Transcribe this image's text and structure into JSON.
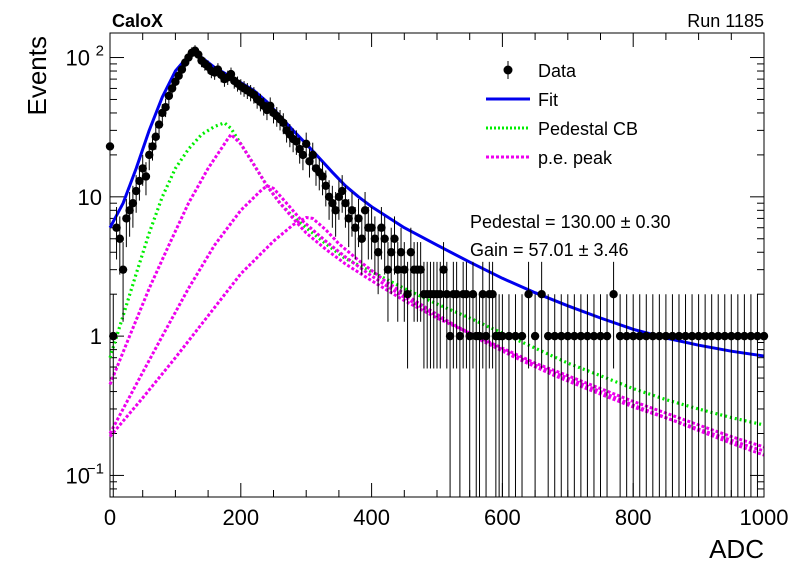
{
  "header": {
    "experiment": "CaloX",
    "run": "Run 1185"
  },
  "colors": {
    "data": "#000000",
    "fit": "#0000ee",
    "pedestal": "#00ee00",
    "pe": "#ee00ee"
  },
  "stats": {
    "pedestal": "Pedestal = 130.00 ± 0.30",
    "gain": "Gain = 57.01 ± 3.46"
  },
  "chart_data": {
    "type": "scatter",
    "xlabel": "ADC",
    "ylabel": "Events",
    "xlim": [
      0,
      1000
    ],
    "ylim": [
      0.07,
      150
    ],
    "yscale": "log",
    "x_ticks": [
      0,
      200,
      400,
      600,
      800,
      1000
    ],
    "y_ticks": [
      {
        "v": 0.1,
        "label": "10",
        "sup": "−1"
      },
      {
        "v": 1,
        "label": "1",
        "sup": ""
      },
      {
        "v": 10,
        "label": "10",
        "sup": ""
      },
      {
        "v": 100,
        "label": "10",
        "sup": "2"
      }
    ],
    "legend": {
      "position": "top-right",
      "entries": [
        {
          "key": "data",
          "label": "Data",
          "style": "marker"
        },
        {
          "key": "fit",
          "label": "Fit",
          "style": "solid"
        },
        {
          "key": "pedestal",
          "label": "Pedestal CB",
          "style": "dotted"
        },
        {
          "key": "pe",
          "label": "p.e. peak",
          "style": "dotted"
        }
      ]
    },
    "series": [
      {
        "name": "Data",
        "style": "points",
        "points": [
          [
            0,
            23
          ],
          [
            5,
            1
          ],
          [
            10,
            6
          ],
          [
            15,
            5
          ],
          [
            20,
            3
          ],
          [
            25,
            7
          ],
          [
            30,
            8
          ],
          [
            35,
            9
          ],
          [
            40,
            11
          ],
          [
            45,
            13
          ],
          [
            50,
            16
          ],
          [
            55,
            14
          ],
          [
            60,
            20
          ],
          [
            65,
            23
          ],
          [
            70,
            27
          ],
          [
            75,
            33
          ],
          [
            80,
            40
          ],
          [
            85,
            44
          ],
          [
            90,
            53
          ],
          [
            95,
            60
          ],
          [
            100,
            67
          ],
          [
            105,
            74
          ],
          [
            110,
            82
          ],
          [
            115,
            92
          ],
          [
            120,
            100
          ],
          [
            125,
            108
          ],
          [
            130,
            112
          ],
          [
            135,
            105
          ],
          [
            140,
            95
          ],
          [
            145,
            90
          ],
          [
            150,
            86
          ],
          [
            155,
            80
          ],
          [
            160,
            78
          ],
          [
            165,
            82
          ],
          [
            170,
            75
          ],
          [
            175,
            70
          ],
          [
            180,
            72
          ],
          [
            185,
            76
          ],
          [
            190,
            68
          ],
          [
            195,
            65
          ],
          [
            200,
            62
          ],
          [
            205,
            60
          ],
          [
            210,
            58
          ],
          [
            215,
            56
          ],
          [
            220,
            54
          ],
          [
            225,
            50
          ],
          [
            230,
            48
          ],
          [
            235,
            45
          ],
          [
            240,
            42
          ],
          [
            245,
            45
          ],
          [
            250,
            40
          ],
          [
            255,
            38
          ],
          [
            260,
            36
          ],
          [
            265,
            34
          ],
          [
            270,
            30
          ],
          [
            275,
            28
          ],
          [
            280,
            26
          ],
          [
            285,
            25
          ],
          [
            290,
            22
          ],
          [
            295,
            20
          ],
          [
            300,
            24
          ],
          [
            305,
            18
          ],
          [
            310,
            20
          ],
          [
            315,
            16
          ],
          [
            320,
            15
          ],
          [
            325,
            14
          ],
          [
            330,
            12
          ],
          [
            335,
            10
          ],
          [
            340,
            9
          ],
          [
            345,
            8
          ],
          [
            350,
            10
          ],
          [
            355,
            11
          ],
          [
            360,
            9
          ],
          [
            365,
            7
          ],
          [
            370,
            8
          ],
          [
            375,
            6
          ],
          [
            380,
            7
          ],
          [
            385,
            5
          ],
          [
            390,
            8
          ],
          [
            395,
            6
          ],
          [
            400,
            6
          ],
          [
            405,
            5
          ],
          [
            410,
            4
          ],
          [
            415,
            6
          ],
          [
            420,
            5
          ],
          [
            425,
            3
          ],
          [
            430,
            4
          ],
          [
            435,
            5
          ],
          [
            440,
            3
          ],
          [
            445,
            4
          ],
          [
            450,
            3
          ],
          [
            455,
            2
          ],
          [
            460,
            4
          ],
          [
            465,
            3
          ],
          [
            470,
            3
          ],
          [
            475,
            3
          ],
          [
            480,
            2
          ],
          [
            485,
            2
          ],
          [
            490,
            2
          ],
          [
            495,
            2
          ],
          [
            500,
            2
          ],
          [
            505,
            2
          ],
          [
            510,
            3
          ],
          [
            515,
            2
          ],
          [
            520,
            1
          ],
          [
            525,
            2
          ],
          [
            530,
            2
          ],
          [
            535,
            1
          ],
          [
            540,
            2
          ],
          [
            545,
            2
          ],
          [
            550,
            1
          ],
          [
            555,
            2
          ],
          [
            560,
            1
          ],
          [
            565,
            1
          ],
          [
            570,
            2
          ],
          [
            575,
            1
          ],
          [
            580,
            2
          ],
          [
            585,
            2
          ],
          [
            590,
            1
          ],
          [
            595,
            1
          ],
          [
            600,
            1
          ],
          [
            610,
            1
          ],
          [
            620,
            1
          ],
          [
            630,
            1
          ],
          [
            640,
            2
          ],
          [
            650,
            1
          ],
          [
            660,
            2
          ],
          [
            670,
            1
          ],
          [
            680,
            1
          ],
          [
            690,
            1
          ],
          [
            700,
            1
          ],
          [
            710,
            1
          ],
          [
            720,
            1
          ],
          [
            730,
            1
          ],
          [
            740,
            1
          ],
          [
            750,
            1
          ],
          [
            760,
            1
          ],
          [
            770,
            2
          ],
          [
            780,
            1
          ],
          [
            790,
            1
          ],
          [
            800,
            1
          ],
          [
            810,
            1
          ],
          [
            820,
            1
          ],
          [
            830,
            1
          ],
          [
            840,
            1
          ],
          [
            850,
            1
          ],
          [
            860,
            1
          ],
          [
            870,
            1
          ],
          [
            880,
            1
          ],
          [
            890,
            1
          ],
          [
            900,
            1
          ],
          [
            910,
            1
          ],
          [
            920,
            1
          ],
          [
            930,
            1
          ],
          [
            940,
            1
          ],
          [
            950,
            1
          ],
          [
            960,
            1
          ],
          [
            970,
            1
          ],
          [
            980,
            1
          ],
          [
            990,
            1
          ],
          [
            1000,
            1
          ]
        ]
      },
      {
        "name": "Fit",
        "style": "solid",
        "x": [
          0,
          20,
          40,
          60,
          80,
          100,
          120,
          130,
          140,
          160,
          180,
          200,
          220,
          240,
          260,
          280,
          300,
          320,
          340,
          360,
          380,
          400,
          450,
          500,
          550,
          600,
          650,
          700,
          750,
          800,
          850,
          900,
          950,
          1000
        ],
        "y": [
          6,
          9,
          16,
          30,
          52,
          80,
          103,
          110,
          100,
          85,
          75,
          66,
          58,
          48,
          38,
          30,
          24,
          19,
          15,
          12,
          10,
          8.5,
          6,
          4.5,
          3.4,
          2.6,
          2.05,
          1.65,
          1.35,
          1.12,
          0.97,
          0.86,
          0.78,
          0.72
        ]
      },
      {
        "name": "Pedestal CB",
        "style": "dotted",
        "x": [
          0,
          20,
          40,
          60,
          80,
          100,
          120,
          140,
          160,
          175,
          185,
          200,
          220,
          240,
          260,
          280,
          300,
          330,
          360,
          400,
          450,
          500,
          550,
          600,
          650,
          700,
          750,
          800,
          850,
          900,
          950,
          1000
        ],
        "y": [
          0.7,
          1.4,
          2.8,
          5.5,
          10,
          16,
          22,
          28,
          32,
          34,
          31,
          24,
          17,
          12,
          9,
          7.2,
          6,
          4.6,
          3.6,
          2.9,
          2.2,
          1.7,
          1.35,
          1.05,
          0.82,
          0.64,
          0.52,
          0.42,
          0.35,
          0.3,
          0.26,
          0.23
        ]
      },
      {
        "name": "p.e. peak 1",
        "style": "dotted",
        "x": [
          0,
          30,
          60,
          90,
          120,
          150,
          180,
          185,
          200,
          220,
          240,
          260,
          280,
          300,
          330,
          360,
          400,
          450,
          500,
          550,
          600,
          650,
          700,
          750,
          800,
          850,
          900,
          950,
          1000
        ],
        "y": [
          0.45,
          1,
          2.2,
          4.5,
          9,
          16,
          26,
          28,
          24,
          17,
          12,
          9,
          7,
          5.5,
          4.2,
          3.3,
          2.5,
          1.8,
          1.35,
          1.05,
          0.82,
          0.64,
          0.52,
          0.42,
          0.34,
          0.28,
          0.23,
          0.19,
          0.16
        ]
      },
      {
        "name": "p.e. peak 2",
        "style": "dotted",
        "x": [
          0,
          40,
          80,
          120,
          160,
          200,
          230,
          240,
          250,
          270,
          290,
          310,
          330,
          360,
          400,
          450,
          500,
          550,
          600,
          650,
          700,
          750,
          800,
          850,
          900,
          950,
          1000
        ],
        "y": [
          0.2,
          0.45,
          1,
          2.2,
          4.5,
          8,
          11,
          12,
          11.5,
          9,
          7,
          5.8,
          4.8,
          3.7,
          2.7,
          1.9,
          1.4,
          1.05,
          0.8,
          0.62,
          0.5,
          0.4,
          0.32,
          0.26,
          0.21,
          0.17,
          0.14
        ]
      },
      {
        "name": "p.e. peak 3",
        "style": "dotted",
        "x": [
          0,
          50,
          100,
          150,
          200,
          250,
          280,
          300,
          310,
          330,
          350,
          380,
          420,
          470,
          520,
          570,
          620,
          680,
          740,
          800,
          860,
          920,
          980,
          1000
        ],
        "y": [
          0.19,
          0.36,
          0.7,
          1.4,
          2.8,
          4.8,
          6.3,
          7.1,
          7,
          5.8,
          4.6,
          3.5,
          2.5,
          1.75,
          1.25,
          0.92,
          0.7,
          0.52,
          0.4,
          0.31,
          0.25,
          0.2,
          0.16,
          0.15
        ]
      }
    ]
  }
}
